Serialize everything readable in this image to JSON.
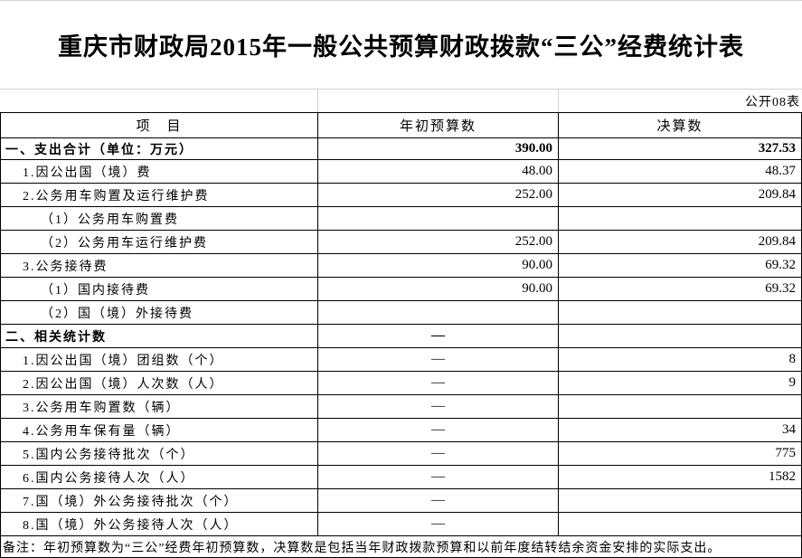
{
  "page": {
    "title": "重庆市财政局2015年一般公共预算财政拨款“三公”经费统计表",
    "table_code": "公开08表"
  },
  "table": {
    "columns": [
      "项　目",
      "年初预算数",
      "决算数"
    ],
    "rows": [
      {
        "label": "一、支出合计（单位：万元）",
        "budget": "390.00",
        "final": "327.53",
        "bold": true,
        "indent": 0,
        "budget_align": "right"
      },
      {
        "label": "1.因公出国（境）费",
        "budget": "48.00",
        "final": "48.37",
        "bold": false,
        "indent": 1,
        "budget_align": "right"
      },
      {
        "label": "2.公务用车购置及运行维护费",
        "budget": "252.00",
        "final": "209.84",
        "bold": false,
        "indent": 1,
        "budget_align": "right"
      },
      {
        "label": "（1）公务用车购置费",
        "budget": "",
        "final": "",
        "bold": false,
        "indent": 2,
        "budget_align": "right"
      },
      {
        "label": "（2）公务用车运行维护费",
        "budget": "252.00",
        "final": "209.84",
        "bold": false,
        "indent": 2,
        "budget_align": "right"
      },
      {
        "label": "3.公务接待费",
        "budget": "90.00",
        "final": "69.32",
        "bold": false,
        "indent": 1,
        "budget_align": "right"
      },
      {
        "label": "（1）国内接待费",
        "budget": "90.00",
        "final": "69.32",
        "bold": false,
        "indent": 2,
        "budget_align": "right"
      },
      {
        "label": "（2）国（境）外接待费",
        "budget": "",
        "final": "",
        "bold": false,
        "indent": 2,
        "budget_align": "right"
      },
      {
        "label": "二、相关统计数",
        "budget": "—",
        "final": "",
        "bold": true,
        "indent": 0,
        "budget_align": "center"
      },
      {
        "label": "1.因公出国（境）团组数（个）",
        "budget": "—",
        "final": "8",
        "bold": false,
        "indent": 1,
        "budget_align": "center"
      },
      {
        "label": "2.因公出国（境）人次数（人）",
        "budget": "—",
        "final": "9",
        "bold": false,
        "indent": 1,
        "budget_align": "center"
      },
      {
        "label": "3.公务用车购置数（辆）",
        "budget": "—",
        "final": "",
        "bold": false,
        "indent": 1,
        "budget_align": "center"
      },
      {
        "label": "4.公务用车保有量（辆）",
        "budget": "—",
        "final": "34",
        "bold": false,
        "indent": 1,
        "budget_align": "center"
      },
      {
        "label": "5.国内公务接待批次（个）",
        "budget": "—",
        "final": "775",
        "bold": false,
        "indent": 1,
        "budget_align": "center"
      },
      {
        "label": "6.国内公务接待人次（人）",
        "budget": "—",
        "final": "1582",
        "bold": false,
        "indent": 1,
        "budget_align": "center"
      },
      {
        "label": "7.国（境）外公务接待批次（个）",
        "budget": "—",
        "final": "",
        "bold": false,
        "indent": 1,
        "budget_align": "center"
      },
      {
        "label": "8.国（境）外公务接待人次（人）",
        "budget": "—",
        "final": "",
        "bold": false,
        "indent": 1,
        "budget_align": "center"
      }
    ]
  },
  "note": "备注：年初预算数为“三公”经费年初预算数，决算数是包括当年财政拨款预算和以前年度结转结余资金安排的实际支出。",
  "colors": {
    "border": "#000000",
    "gridline": "#ccd3e0",
    "text": "#000000",
    "background": "#ffffff"
  }
}
